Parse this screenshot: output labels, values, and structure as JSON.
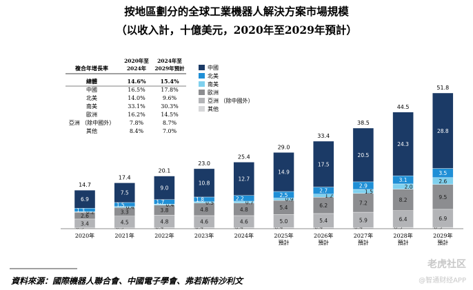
{
  "title": "按地區劃分的全球工業機器人解決方案市場規模",
  "subtitle": "（以收入計，十億美元，2020年至2029年預計）",
  "cagr_table": {
    "row_header": "複合年增長率",
    "col1_header": [
      "2020年至",
      "2024年"
    ],
    "col2_header": [
      "2024年至",
      "2029年預計"
    ],
    "rows": [
      {
        "label": "總體",
        "v1": "14.6%",
        "v2": "15.4%",
        "bold": true
      },
      {
        "label": "中國",
        "v1": "16.5%",
        "v2": "17.8%"
      },
      {
        "label": "北美",
        "v1": "14.0%",
        "v2": "9.6%"
      },
      {
        "label": "南美",
        "v1": "33.1%",
        "v2": "30.3%"
      },
      {
        "label": "歐洲",
        "v1": "16.2%",
        "v2": "14.5%"
      },
      {
        "label": "亞洲 （除中國外）",
        "v1": "7.8%",
        "v2": "8.7%"
      },
      {
        "label": "其他",
        "v1": "8.4%",
        "v2": "7.0%"
      }
    ]
  },
  "colors": {
    "china": "#1b3a66",
    "north_america": "#1f8fd6",
    "south_america": "#7fd0ee",
    "europe": "#8c8d90",
    "asia_ex_china": "#b3b4b7",
    "other": "#d6d7d9"
  },
  "chart_data": {
    "type": "bar",
    "stacked": true,
    "categories": [
      [
        "2020年"
      ],
      [
        "2021年"
      ],
      [
        "2022年"
      ],
      [
        "2023年"
      ],
      [
        "2024年"
      ],
      [
        "2025年",
        "預計"
      ],
      [
        "2026年",
        "預計"
      ],
      [
        "2027年",
        "預計"
      ],
      [
        "2028年",
        "預計"
      ],
      [
        "2029年",
        "預計"
      ]
    ],
    "totals": [
      14.7,
      17.4,
      20.1,
      23.0,
      25.4,
      29.0,
      33.4,
      38.5,
      44.5,
      51.8
    ],
    "series": [
      {
        "name": "其他",
        "key": "other",
        "values": [
          0.3,
          0.3,
          0.4,
          0.4,
          0.4,
          0.4,
          0.4,
          0.4,
          0.5,
          0.5
        ]
      },
      {
        "name": "亞洲 （除中國外）",
        "key": "asia_ex_china",
        "values": [
          3.4,
          4.5,
          4.8,
          4.6,
          4.6,
          5.0,
          5.4,
          5.9,
          6.4,
          6.9
        ]
      },
      {
        "name": "歐洲",
        "key": "europe",
        "values": [
          2.6,
          3.3,
          3.8,
          4.8,
          4.8,
          5.4,
          6.2,
          7.2,
          8.2,
          9.5
        ]
      },
      {
        "name": "南美",
        "key": "south_america",
        "values": [
          0.2,
          0.4,
          0.4,
          0.5,
          0.7,
          0.9,
          1.2,
          1.5,
          2.0,
          2.6
        ]
      },
      {
        "name": "北美",
        "key": "north_america",
        "values": [
          1.3,
          1.5,
          1.7,
          1.8,
          2.2,
          2.5,
          2.7,
          2.9,
          3.1,
          3.5
        ]
      },
      {
        "name": "中國",
        "key": "china",
        "values": [
          6.9,
          7.5,
          9.0,
          10.8,
          12.7,
          14.9,
          17.5,
          20.5,
          24.3,
          28.8
        ]
      }
    ],
    "legend_order": [
      "china",
      "north_america",
      "south_america",
      "europe",
      "asia_ex_china",
      "other"
    ],
    "legend_labels": {
      "china": "中國",
      "north_america": "北美",
      "south_america": "南美",
      "europe": "歐洲",
      "asia_ex_china": "亞洲 （除中國外）",
      "other": "其他"
    },
    "legend_position": "top-left"
  },
  "source": "資料來源：國際機器人聯合會、中國電子學會、弗若斯特沙利文",
  "watermarks": [
    "老虎社区",
    "@智通财经APP"
  ]
}
